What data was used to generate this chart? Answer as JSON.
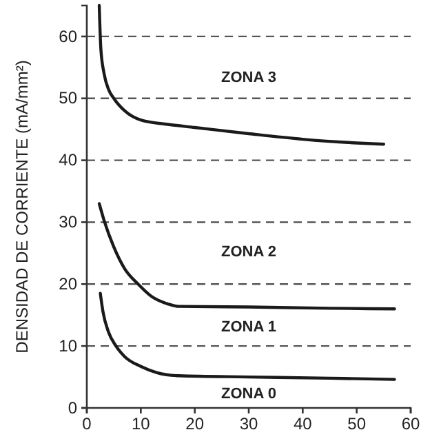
{
  "chart_data": {
    "type": "line",
    "ylabel": "DENSIDAD DE CORRIENTE (mA/mm²)",
    "xlim": [
      0,
      60
    ],
    "xticks": [
      0,
      10,
      20,
      30,
      40,
      50,
      60
    ],
    "ylim": [
      0,
      65
    ],
    "yticks": [
      0,
      10,
      20,
      30,
      40,
      50,
      60
    ],
    "grid": "y",
    "line_style": "solid",
    "marker": "none",
    "series": [
      {
        "color": "#1a1a1a",
        "x": [
          2.3,
          2.6,
          3.2,
          4,
          5,
          7,
          10,
          15,
          20,
          30,
          40,
          50,
          55
        ],
        "values": [
          65,
          58,
          54,
          51.5,
          50,
          48,
          46.5,
          45.8,
          45.3,
          44.3,
          43.4,
          42.8,
          42.6
        ]
      },
      {
        "color": "#1a1a1a",
        "x": [
          2.3,
          3.3,
          5,
          7,
          9.5,
          12,
          15,
          17,
          30,
          45,
          57
        ],
        "values": [
          33,
          30,
          26,
          22.5,
          20,
          18,
          16.8,
          16.4,
          16.3,
          16.1,
          16
        ]
      },
      {
        "color": "#1a1a1a",
        "x": [
          2.5,
          3,
          4,
          5.4,
          7,
          10,
          13,
          17,
          30,
          45,
          57
        ],
        "values": [
          18.5,
          15.5,
          12.3,
          10,
          8.3,
          6.7,
          5.7,
          5.2,
          5,
          4.8,
          4.6
        ]
      }
    ],
    "annotations": [
      "ZONA 3",
      "ZONA 2",
      "ZONA 1",
      "ZONA 0"
    ]
  }
}
